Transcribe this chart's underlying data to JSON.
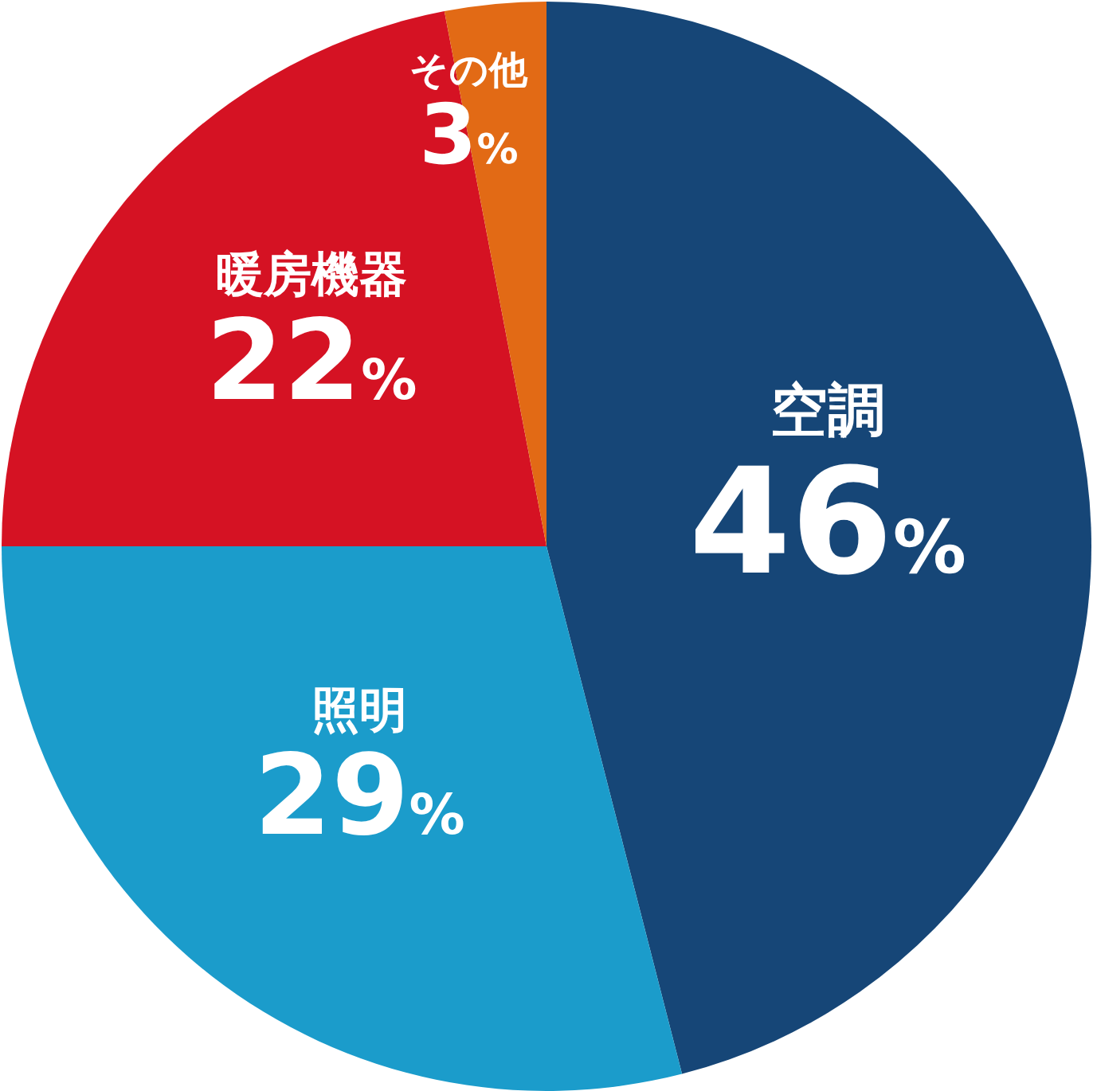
{
  "chart_data": {
    "type": "pie",
    "categories": [
      "空調",
      "照明",
      "暖房機器",
      "その他"
    ],
    "values": [
      46,
      29,
      22,
      3
    ],
    "colors": [
      "#164677",
      "#1b9ccb",
      "#d51223",
      "#e26a15"
    ],
    "value_labels": [
      "46%",
      "29%",
      "22%",
      "3%"
    ]
  }
}
